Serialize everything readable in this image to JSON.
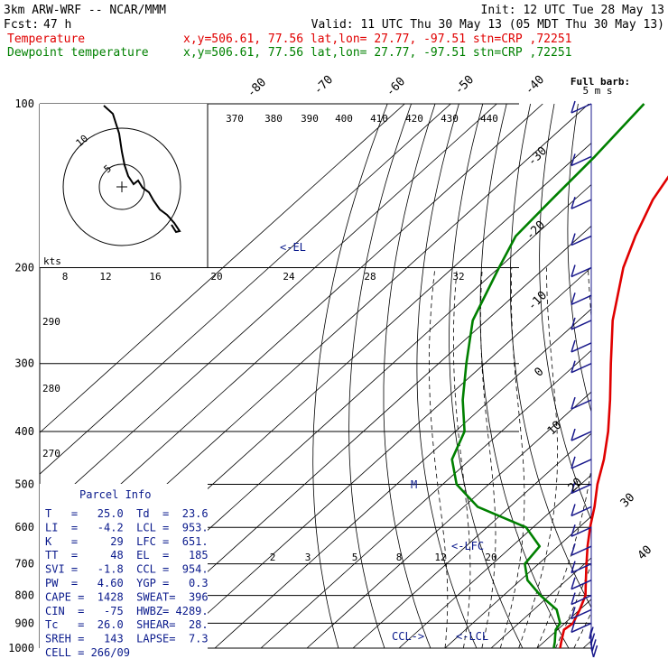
{
  "header": {
    "model": "3km ARW-WRF -- NCAR/MMM",
    "init": "Init: 12 UTC Tue 28 May 13",
    "fcst_label": "Fcst:",
    "fcst_value": "47 h",
    "valid": "Valid: 11 UTC Thu 30 May 13 (05 MDT Thu 30 May 13)",
    "series": [
      {
        "name": "Temperature",
        "loc": "x,y=506.61, 77.56   lat,lon= 27.77, -97.51   stn=CRP ,72251",
        "color": "#e00000"
      },
      {
        "name": "Dewpoint temperature",
        "loc": "x,y=506.61, 77.56   lat,lon= 27.77, -97.51   stn=CRP ,72251",
        "color": "#008000"
      }
    ],
    "barb_legend": [
      "Full barb:",
      "5 m s"
    ]
  },
  "chart_data": {
    "type": "skew-t",
    "pressure_levels": [
      100,
      200,
      300,
      400,
      500,
      600,
      700,
      800,
      900,
      1000
    ],
    "temperature_labels": [
      -80,
      -70,
      -60,
      -50,
      -40,
      -30,
      -20,
      -10,
      0,
      10,
      20,
      30,
      40
    ],
    "theta_labels": [
      370,
      380,
      390,
      400,
      410,
      420,
      430,
      440
    ],
    "theta_left_labels": [
      290,
      280,
      270
    ],
    "mixing_ratio_labels": [
      2,
      3,
      5,
      8,
      12,
      20
    ],
    "temperature_profile": [
      {
        "p": 1000,
        "t": 25.0
      },
      {
        "p": 975,
        "t": 23.8
      },
      {
        "p": 950,
        "t": 22.6
      },
      {
        "p": 925,
        "t": 21.4
      },
      {
        "p": 900,
        "t": 21.8
      },
      {
        "p": 850,
        "t": 20.0
      },
      {
        "p": 800,
        "t": 17.8
      },
      {
        "p": 750,
        "t": 14.2
      },
      {
        "p": 700,
        "t": 10.4
      },
      {
        "p": 650,
        "t": 6.4
      },
      {
        "p": 600,
        "t": 2.4
      },
      {
        "p": 550,
        "t": -1.6
      },
      {
        "p": 500,
        "t": -6.4
      },
      {
        "p": 450,
        "t": -11.0
      },
      {
        "p": 400,
        "t": -16.8
      },
      {
        "p": 350,
        "t": -24.0
      },
      {
        "p": 300,
        "t": -32.6
      },
      {
        "p": 250,
        "t": -42.6
      },
      {
        "p": 200,
        "t": -53.0
      },
      {
        "p": 175,
        "t": -58.0
      },
      {
        "p": 150,
        "t": -63.0
      },
      {
        "p": 125,
        "t": -67.0
      },
      {
        "p": 100,
        "t": -71.0
      }
    ],
    "dewpoint_profile": [
      {
        "p": 1000,
        "t": 23.6
      },
      {
        "p": 975,
        "t": 22.4
      },
      {
        "p": 950,
        "t": 21.0
      },
      {
        "p": 925,
        "t": 19.6
      },
      {
        "p": 900,
        "t": 19.0
      },
      {
        "p": 850,
        "t": 15.0
      },
      {
        "p": 800,
        "t": 8.0
      },
      {
        "p": 750,
        "t": 1.5
      },
      {
        "p": 700,
        "t": -3.0
      },
      {
        "p": 650,
        "t": -4.0
      },
      {
        "p": 600,
        "t": -11.5
      },
      {
        "p": 550,
        "t": -27.0
      },
      {
        "p": 500,
        "t": -37.0
      },
      {
        "p": 450,
        "t": -44.0
      },
      {
        "p": 400,
        "t": -48.0
      },
      {
        "p": 350,
        "t": -56.0
      },
      {
        "p": 300,
        "t": -64.0
      },
      {
        "p": 250,
        "t": -73.0
      },
      {
        "p": 200,
        "t": -80.0
      },
      {
        "p": 175,
        "t": -84.0
      },
      {
        "p": 150,
        "t": -85.0
      },
      {
        "p": 125,
        "t": -86.0
      },
      {
        "p": 100,
        "t": -88.0
      }
    ],
    "markers": [
      {
        "label": "<-EL",
        "p": 185
      },
      {
        "label": "<-LFC",
        "p": 651
      },
      {
        "label": "<-LCL",
        "p": 953
      },
      {
        "label": "CCL->",
        "p": 954
      }
    ],
    "hodograph": {
      "units": "kts",
      "ring_labels": [
        "5",
        "10"
      ],
      "speed_labels": [
        8,
        12,
        16,
        20,
        24,
        28,
        32
      ]
    },
    "wind_barbs_levels": [
      100,
      125,
      150,
      175,
      200,
      225,
      250,
      275,
      300,
      350,
      400,
      450,
      500,
      550,
      600,
      650,
      700,
      750,
      800,
      850,
      900,
      925,
      950,
      975,
      1000
    ]
  },
  "parcel": {
    "title": "Parcel Info",
    "rows": [
      "T   =   25.0  Td  =  23.6",
      "LI  =   -4.2  LCL =  953.",
      "K   =     29  LFC =  651.",
      "TT  =     48  EL  =   185",
      "SVI =   -1.8  CCL =  954.",
      "PW  =   4.60  YGP =   0.3",
      "CAPE =  1428  SWEAT=  396",
      "CIN  =   -75  HWBZ= 4289.",
      "Tc   =  26.0  SHEAR=  28.",
      "SREH =   143  LAPSE=  7.3",
      "CELL = 266/09"
    ]
  }
}
